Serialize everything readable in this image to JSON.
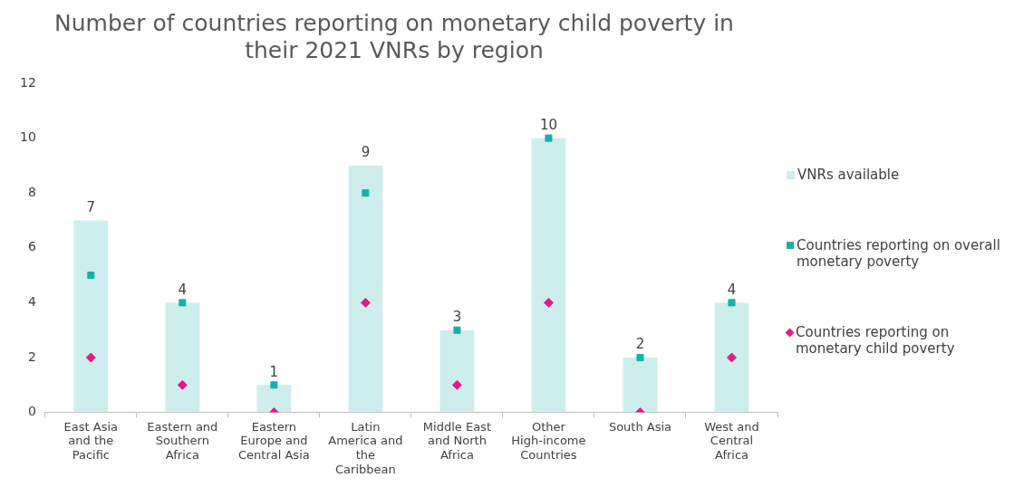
{
  "chart_data": {
    "type": "bar",
    "title": "Number of countries reporting on monetary child poverty in their 2021 VNRs by region",
    "categories": [
      "East Asia and the Pacific",
      "Eastern and Southern Africa",
      "Eastern Europe and Central Asia",
      "Latin America and the Caribbean",
      "Middle East and North Africa",
      "Other High-income Countries",
      "South Asia",
      "West and Central Africa"
    ],
    "series": [
      {
        "name": "VNRs available",
        "color": "#cdeeed",
        "values": [
          7,
          4,
          1,
          9,
          3,
          10,
          2,
          4
        ],
        "value_labels": [
          "7",
          "4",
          "1",
          "9",
          "3",
          "10",
          "2",
          "4"
        ]
      },
      {
        "name": "Countries reporting on overall monetary poverty",
        "type": "scatter",
        "marker": "square",
        "color": "#1ab0a8",
        "values": [
          5,
          4,
          1,
          8,
          3,
          10,
          2,
          4
        ]
      },
      {
        "name": "Countries reporting on monetary child poverty",
        "type": "scatter",
        "marker": "diamond",
        "color": "#e5198a",
        "values": [
          2,
          1,
          0,
          4,
          1,
          4,
          0,
          2
        ]
      }
    ],
    "ylim": [
      0,
      12
    ],
    "yticks": [
      0,
      2,
      4,
      6,
      8,
      10,
      12
    ],
    "grid": false,
    "legend": "right"
  }
}
